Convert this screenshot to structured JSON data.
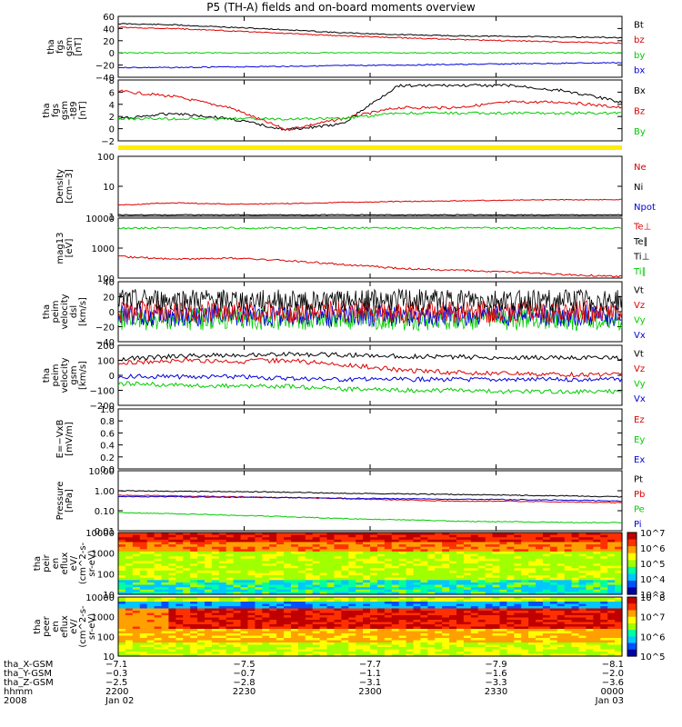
{
  "title": "P5 (TH-A) fields and on-board moments overview",
  "colors": {
    "black": "#000000",
    "red": "#dd0000",
    "green": "#00cc00",
    "blue": "#0000dd",
    "yellow": "#ffee00"
  },
  "panels": [
    {
      "id": "fgs_gsm",
      "ylabel": [
        "tha",
        "fgs",
        "gsm",
        "[nT]"
      ],
      "ticks": [
        "60",
        "40",
        "20",
        "0",
        "−20",
        "−40"
      ],
      "legend": [
        {
          "label": "Bt",
          "color": "black"
        },
        {
          "label": "bz",
          "color": "red"
        },
        {
          "label": "by",
          "color": "green"
        },
        {
          "label": "bx",
          "color": "blue"
        }
      ]
    },
    {
      "id": "fgs_dsl",
      "ylabel": [
        "tha",
        "fgs",
        "gsm",
        "-t89",
        "[nT]"
      ],
      "ticks": [
        "8",
        "6",
        "4",
        "2",
        "0",
        "−2"
      ],
      "legend": [
        {
          "label": "Bx",
          "color": "black"
        },
        {
          "label": "Bz",
          "color": "red"
        },
        {
          "label": "By",
          "color": "green"
        }
      ]
    },
    {
      "id": "density",
      "ylabel": [
        "Density",
        "[cm−3]"
      ],
      "ticks": [
        "100",
        "10",
        "1"
      ],
      "legend": [
        {
          "label": "Ne",
          "color": "red"
        },
        {
          "label": "Ni",
          "color": "black"
        },
        {
          "label": "Npot",
          "color": "blue"
        }
      ]
    },
    {
      "id": "temperature",
      "ylabel": [
        "mag13",
        "[eV]"
      ],
      "ticks": [
        "10000",
        "1000",
        "100"
      ],
      "legend": [
        {
          "label": "Te⊥",
          "color": "red"
        },
        {
          "label": "Te∥",
          "color": "black"
        },
        {
          "label": "Ti⊥",
          "color": "black"
        },
        {
          "label": "Ti∥",
          "color": "green"
        }
      ]
    },
    {
      "id": "velocity_dsl",
      "ylabel": [
        "tha",
        "peim",
        "velocity",
        "dsl",
        "[km/s]"
      ],
      "ticks": [
        "40",
        "20",
        "0",
        "−20",
        "−40"
      ],
      "legend": [
        {
          "label": "Vt",
          "color": "black"
        },
        {
          "label": "Vz",
          "color": "red"
        },
        {
          "label": "Vy",
          "color": "green"
        },
        {
          "label": "Vx",
          "color": "blue"
        }
      ]
    },
    {
      "id": "velocity_gsm",
      "ylabel": [
        "tha",
        "peim",
        "velocity",
        "gsm",
        "[km/s]"
      ],
      "ticks": [
        "200",
        "100",
        "0",
        "−100",
        "−200"
      ],
      "legend": [
        {
          "label": "Vt",
          "color": "black"
        },
        {
          "label": "Vz",
          "color": "red"
        },
        {
          "label": "Vy",
          "color": "green"
        },
        {
          "label": "Vx",
          "color": "blue"
        }
      ]
    },
    {
      "id": "efield",
      "ylabel": [
        "E=−VxB",
        "[mV/m]"
      ],
      "ticks": [
        "1.0",
        "0.8",
        "0.6",
        "0.4",
        "0.2",
        "0.0"
      ],
      "legend": [
        {
          "label": "Ez",
          "color": "red"
        },
        {
          "label": "Ey",
          "color": "green"
        },
        {
          "label": "Ex",
          "color": "blue"
        }
      ]
    },
    {
      "id": "pressure",
      "ylabel": [
        "Pressure",
        "[nPa]"
      ],
      "ticks": [
        "10.00",
        "1.00",
        "0.10",
        "0.01"
      ],
      "legend": [
        {
          "label": "Pt",
          "color": "black"
        },
        {
          "label": "Pb",
          "color": "red"
        },
        {
          "label": "Pe",
          "color": "green"
        },
        {
          "label": "Pi",
          "color": "blue"
        }
      ]
    },
    {
      "id": "ion_spectrogram",
      "ylabel": [
        "tha",
        "peir",
        "en",
        "eflux",
        "eV/",
        "(cm^2-s-",
        "sr-eV)"
      ],
      "ticks": [
        "10000",
        "1000",
        "100",
        "10"
      ],
      "colorbar": [
        "10^7",
        "10^6",
        "10^5",
        "10^4",
        "10^3"
      ]
    },
    {
      "id": "electron_spectrogram",
      "ylabel": [
        "tha",
        "peer",
        "en",
        "eflux",
        "eV/",
        "(cm^2-s-",
        "sr-eV)"
      ],
      "ticks": [
        "10000",
        "1000",
        "100",
        "10"
      ],
      "colorbar": [
        "10^8",
        "10^7",
        "10^6",
        "10^5"
      ]
    }
  ],
  "footer": {
    "row_labels": [
      "tha_X-GSM",
      "tha_Y-GSM",
      "tha_Z-GSM",
      "hhmm",
      "2008"
    ],
    "columns": [
      {
        "x": "−7.1",
        "y": "−0.3",
        "z": "−2.5",
        "hhmm": "2200",
        "date": "Jan 02"
      },
      {
        "x": "−7.5",
        "y": "−0.7",
        "z": "−2.8",
        "hhmm": "2230",
        "date": ""
      },
      {
        "x": "−7.7",
        "y": "−1.1",
        "z": "−3.1",
        "hhmm": "2300",
        "date": ""
      },
      {
        "x": "−7.9",
        "y": "−1.6",
        "z": "−3.3",
        "hhmm": "2330",
        "date": ""
      },
      {
        "x": "−8.1",
        "y": "−2.0",
        "z": "−3.6",
        "hhmm": "0000",
        "date": "Jan 03"
      }
    ]
  },
  "chart_data": {
    "type": "line",
    "x_range": [
      "2008-01-02 22:00",
      "2008-01-03 00:00"
    ],
    "series": [
      {
        "name": "Bt",
        "panel": "fgs_gsm",
        "color": "black",
        "values": [
          48,
          46,
          42,
          38,
          33,
          30,
          28,
          27,
          26,
          25
        ]
      },
      {
        "name": "bz",
        "panel": "fgs_gsm",
        "color": "red",
        "values": [
          42,
          40,
          36,
          32,
          28,
          25,
          22,
          20,
          18,
          16
        ]
      },
      {
        "name": "by",
        "panel": "fgs_gsm",
        "color": "green",
        "values": [
          0,
          0,
          0,
          0,
          0,
          0,
          0,
          0,
          0,
          0
        ]
      },
      {
        "name": "bx",
        "panel": "fgs_gsm",
        "color": "blue",
        "values": [
          -24,
          -24,
          -23,
          -22,
          -21,
          -20,
          -19,
          -18,
          -17,
          -16
        ]
      },
      {
        "name": "Bx",
        "panel": "fgs_dsl",
        "color": "black",
        "values": [
          1,
          2,
          1,
          -1,
          0,
          7,
          7,
          7,
          6,
          4
        ]
      },
      {
        "name": "Bz",
        "panel": "fgs_dsl",
        "color": "red",
        "values": [
          6,
          5,
          3,
          -1,
          1,
          3,
          3,
          4,
          4,
          3
        ]
      },
      {
        "name": "By",
        "panel": "fgs_dsl",
        "color": "green",
        "values": [
          1,
          1,
          1,
          1,
          1,
          2,
          2,
          2,
          2,
          2
        ]
      },
      {
        "name": "Ne",
        "panel": "density",
        "color": "red",
        "values": [
          2,
          2.5,
          2.2,
          2.3,
          2.6,
          2.8,
          3,
          3.2,
          3.3,
          3.4
        ]
      },
      {
        "name": "Ni",
        "panel": "density",
        "color": "black",
        "values": [
          0.8,
          0.8,
          0.8,
          0.8,
          0.8,
          0.8,
          0.8,
          0.8,
          0.8,
          0.8
        ]
      },
      {
        "name": "Te⊥",
        "panel": "temperature",
        "color": "red",
        "values": [
          400,
          320,
          350,
          280,
          200,
          140,
          120,
          100,
          80,
          70
        ]
      },
      {
        "name": "Ti∥",
        "panel": "temperature",
        "color": "green",
        "values": [
          5000,
          5000,
          5000,
          5000,
          5000,
          5000,
          5000,
          5000,
          5000,
          5000
        ]
      },
      {
        "name": "Vt",
        "panel": "velocity_gsm",
        "color": "black",
        "values": [
          120,
          140,
          150,
          155,
          150,
          140,
          135,
          130,
          130,
          130
        ]
      },
      {
        "name": "Vz",
        "panel": "velocity_gsm",
        "color": "red",
        "values": [
          90,
          110,
          100,
          110,
          80,
          40,
          20,
          10,
          5,
          5
        ]
      },
      {
        "name": "Vx",
        "panel": "velocity_gsm",
        "color": "blue",
        "values": [
          -10,
          -10,
          -10,
          -20,
          -30,
          -30,
          -30,
          -30,
          -30,
          -30
        ]
      },
      {
        "name": "Vy",
        "panel": "velocity_gsm",
        "color": "green",
        "values": [
          -60,
          -70,
          -80,
          -80,
          -100,
          -110,
          -110,
          -120,
          -120,
          -120
        ]
      },
      {
        "name": "Pt",
        "panel": "pressure",
        "color": "black",
        "values": [
          1,
          0.95,
          0.9,
          0.85,
          0.75,
          0.7,
          0.65,
          0.6,
          0.55,
          0.5
        ]
      },
      {
        "name": "Pb",
        "panel": "pressure",
        "color": "red",
        "values": [
          0.6,
          0.55,
          0.5,
          0.45,
          0.4,
          0.35,
          0.3,
          0.3,
          0.28,
          0.25
        ]
      },
      {
        "name": "Pi",
        "panel": "pressure",
        "color": "blue",
        "values": [
          0.5,
          0.5,
          0.48,
          0.45,
          0.42,
          0.4,
          0.38,
          0.36,
          0.34,
          0.3
        ]
      },
      {
        "name": "Pe",
        "panel": "pressure",
        "color": "green",
        "values": [
          0.08,
          0.07,
          0.06,
          0.05,
          0.04,
          0.035,
          0.03,
          0.028,
          0.026,
          0.025
        ]
      }
    ]
  }
}
